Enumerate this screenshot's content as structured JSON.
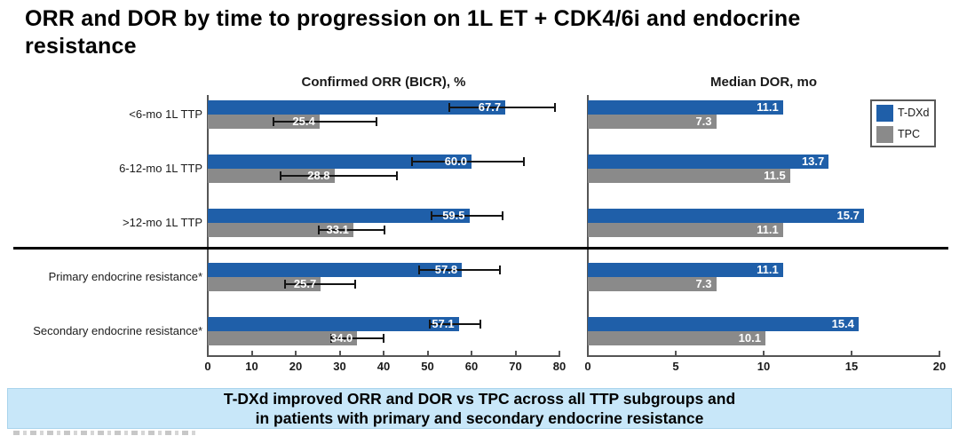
{
  "title": "ORR and DOR by time to progression on 1L ET + CDK4/6i and endocrine resistance",
  "legend": {
    "items": [
      {
        "label": "T-DXd",
        "color": "#1f5fa9"
      },
      {
        "label": "TPC",
        "color": "#8a8a8a"
      }
    ]
  },
  "banner": {
    "line1": "T-DXd improved ORR and DOR vs TPC across all TTP subgroups and",
    "line2": "in patients with primary and secondary endocrine resistance"
  },
  "colors": {
    "tdxd": "#1f5fa9",
    "tpc": "#8a8a8a",
    "banner_bg": "#c8e7f9",
    "axis": "#555555",
    "divider": "#000000"
  },
  "chart_data": [
    {
      "type": "bar",
      "orientation": "horizontal",
      "title": "Confirmed ORR (BICR), %",
      "categories": [
        "<6-mo 1L TTP",
        "6-12-mo 1L TTP",
        ">12-mo 1L TTP",
        "Primary endocrine resistance*",
        "Secondary endocrine resistance*"
      ],
      "series": [
        {
          "name": "T-DXd",
          "color": "#1f5fa9",
          "values": [
            67.7,
            60.0,
            59.5,
            57.8,
            57.1
          ],
          "ci": [
            [
              55.0,
              78.9
            ],
            [
              46.5,
              72.0
            ],
            [
              51.0,
              67.0
            ],
            [
              48.0,
              66.5
            ],
            [
              50.5,
              62.0
            ]
          ]
        },
        {
          "name": "TPC",
          "color": "#8a8a8a",
          "values": [
            25.4,
            28.8,
            33.1,
            25.7,
            34.0
          ],
          "ci": [
            [
              15.0,
              38.4
            ],
            [
              16.5,
              43.0
            ],
            [
              25.2,
              40.3
            ],
            [
              17.5,
              33.6
            ],
            [
              28.0,
              40.0
            ]
          ]
        }
      ],
      "xlim": [
        0,
        80
      ],
      "xticks": [
        0,
        10,
        20,
        30,
        40,
        50,
        60,
        70,
        80
      ],
      "grid": false,
      "legend_position": "top-right"
    },
    {
      "type": "bar",
      "orientation": "horizontal",
      "title": "Median DOR, mo",
      "categories": [
        "<6-mo 1L TTP",
        "6-12-mo 1L TTP",
        ">12-mo 1L TTP",
        "Primary endocrine resistance*",
        "Secondary endocrine resistance*"
      ],
      "series": [
        {
          "name": "T-DXd",
          "color": "#1f5fa9",
          "values": [
            11.1,
            13.7,
            15.7,
            11.1,
            15.4
          ]
        },
        {
          "name": "TPC",
          "color": "#8a8a8a",
          "values": [
            7.3,
            11.5,
            11.1,
            7.3,
            10.1
          ]
        }
      ],
      "xlim": [
        0,
        20
      ],
      "xticks": [
        0,
        5,
        10,
        15,
        20
      ],
      "grid": false
    }
  ]
}
